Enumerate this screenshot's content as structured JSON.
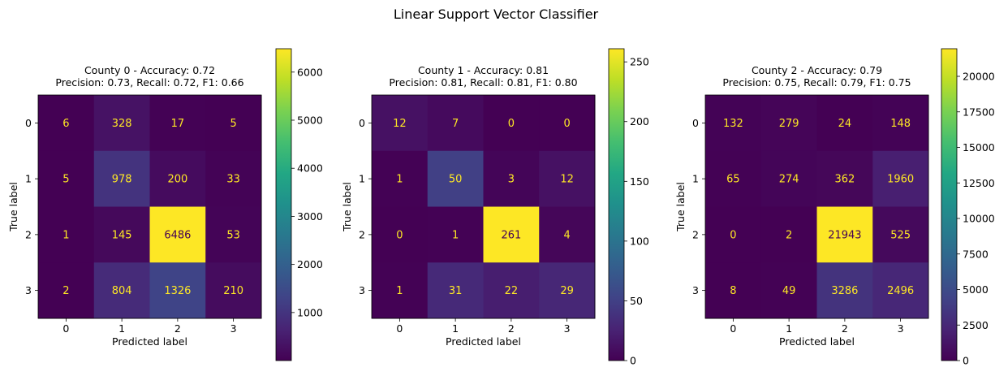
{
  "figure": {
    "suptitle": "Linear Support Vector Classifier"
  },
  "colormap": {
    "name": "viridis",
    "low_color": "#440154",
    "high_color": "#fde725",
    "text_on_dark": "#fde725",
    "text_on_light": "#440154"
  },
  "chart_data": [
    {
      "type": "heatmap",
      "title_line1": "County 0 - Accuracy: 0.72",
      "title_line2": "Precision: 0.73, Recall: 0.72, F1: 0.66",
      "xlabel": "Predicted label",
      "ylabel": "True label",
      "x_categories": [
        "0",
        "1",
        "2",
        "3"
      ],
      "y_categories": [
        "0",
        "1",
        "2",
        "3"
      ],
      "matrix": [
        [
          6,
          328,
          17,
          5
        ],
        [
          5,
          978,
          200,
          33
        ],
        [
          1,
          145,
          6486,
          53
        ],
        [
          2,
          804,
          1326,
          210
        ]
      ],
      "colorbar_ticks": [
        1000,
        2000,
        3000,
        4000,
        5000,
        6000
      ],
      "colorbar_range": [
        1,
        6486
      ]
    },
    {
      "type": "heatmap",
      "title_line1": "County 1 - Accuracy: 0.81",
      "title_line2": "Precision: 0.81, Recall: 0.81, F1: 0.80",
      "xlabel": "Predicted label",
      "ylabel": "True label",
      "x_categories": [
        "0",
        "1",
        "2",
        "3"
      ],
      "y_categories": [
        "0",
        "1",
        "2",
        "3"
      ],
      "matrix": [
        [
          12,
          7,
          0,
          0
        ],
        [
          1,
          50,
          3,
          12
        ],
        [
          0,
          1,
          261,
          4
        ],
        [
          1,
          31,
          22,
          29
        ]
      ],
      "colorbar_ticks": [
        0,
        50,
        100,
        150,
        200,
        250
      ],
      "colorbar_range": [
        0,
        261
      ]
    },
    {
      "type": "heatmap",
      "title_line1": "County 2 - Accuracy: 0.79",
      "title_line2": "Precision: 0.75, Recall: 0.79, F1: 0.75",
      "xlabel": "Predicted label",
      "ylabel": "True label",
      "x_categories": [
        "0",
        "1",
        "2",
        "3"
      ],
      "y_categories": [
        "0",
        "1",
        "2",
        "3"
      ],
      "matrix": [
        [
          132,
          279,
          24,
          148
        ],
        [
          65,
          274,
          362,
          1960
        ],
        [
          0,
          2,
          21943,
          525
        ],
        [
          8,
          49,
          3286,
          2496
        ]
      ],
      "colorbar_ticks": [
        0,
        2500,
        5000,
        7500,
        10000,
        12500,
        15000,
        17500,
        20000
      ],
      "colorbar_range": [
        0,
        21943
      ]
    }
  ]
}
